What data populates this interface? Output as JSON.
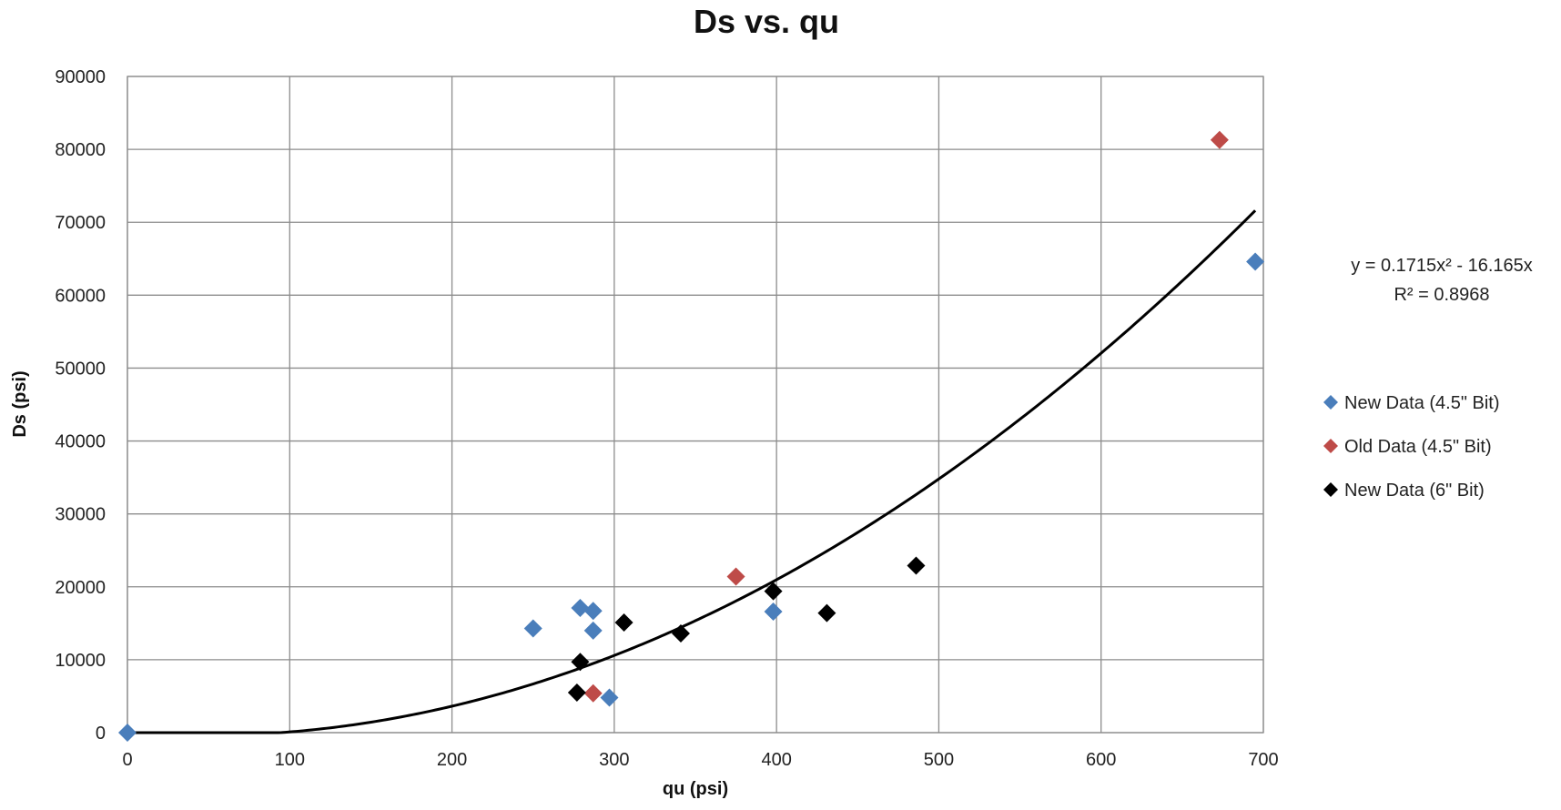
{
  "chart_data": {
    "type": "scatter",
    "title": "Ds vs. qu",
    "xlabel": "qu (psi)",
    "ylabel": "Ds (psi)",
    "xlim": [
      0,
      700
    ],
    "ylim": [
      0,
      90000
    ],
    "x_ticks": [
      "0",
      "100",
      "200",
      "300",
      "400",
      "500",
      "600",
      "700"
    ],
    "y_ticks": [
      "0",
      "10000",
      "20000",
      "30000",
      "40000",
      "50000",
      "60000",
      "70000",
      "80000",
      "90000"
    ],
    "grid": true,
    "legend_position": "right",
    "series": [
      {
        "name": "New Data (4.5\" Bit)",
        "color": "#4a7ebb",
        "marker": "diamond",
        "points": [
          {
            "x": 0,
            "y": 0
          },
          {
            "x": 250,
            "y": 14300
          },
          {
            "x": 279,
            "y": 17100
          },
          {
            "x": 287,
            "y": 16700
          },
          {
            "x": 287,
            "y": 14000
          },
          {
            "x": 297,
            "y": 4800
          },
          {
            "x": 398,
            "y": 16600
          },
          {
            "x": 695,
            "y": 64600
          }
        ]
      },
      {
        "name": "Old Data (4.5\" Bit)",
        "color": "#be4b48",
        "marker": "diamond",
        "points": [
          {
            "x": 287,
            "y": 5400
          },
          {
            "x": 375,
            "y": 21400
          },
          {
            "x": 673,
            "y": 81300
          }
        ]
      },
      {
        "name": "New Data (6\" Bit)",
        "color": "#000000",
        "marker": "diamond",
        "points": [
          {
            "x": 277,
            "y": 5500
          },
          {
            "x": 279,
            "y": 9700
          },
          {
            "x": 306,
            "y": 15100
          },
          {
            "x": 341,
            "y": 13600
          },
          {
            "x": 398,
            "y": 19400
          },
          {
            "x": 431,
            "y": 16400
          },
          {
            "x": 486,
            "y": 22900
          }
        ]
      }
    ],
    "trendline": {
      "type": "polynomial",
      "coefficients": {
        "a": 0.1715,
        "b": -16.165,
        "c": 0
      },
      "x_range": [
        0,
        695
      ],
      "color": "#000000",
      "equation_label": "y = 0.1715x² - 16.165x",
      "r2_label": "R² = 0.8968"
    }
  }
}
